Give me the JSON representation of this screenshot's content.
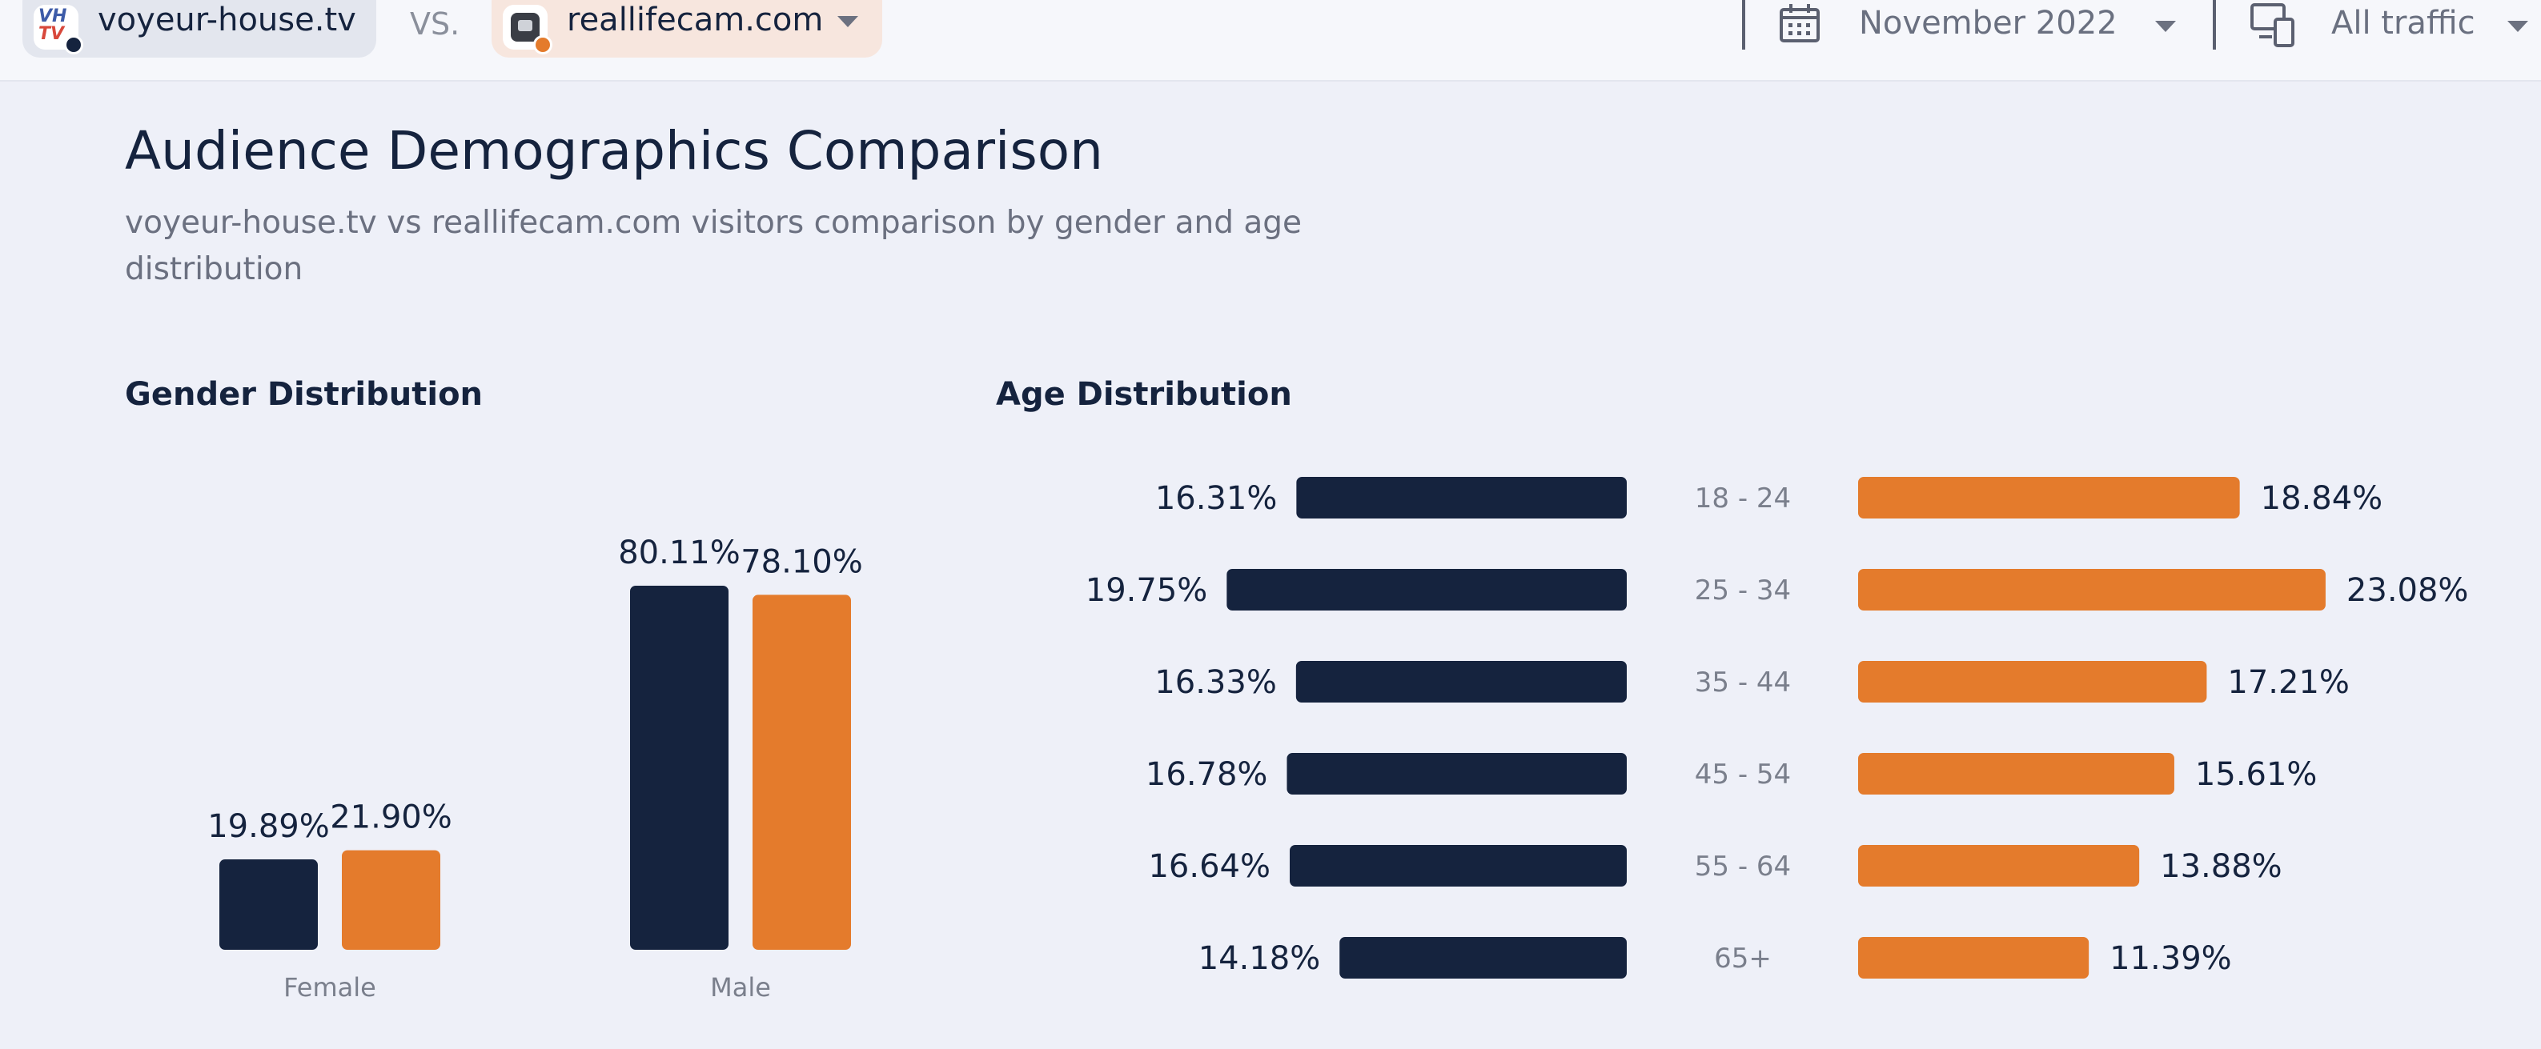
{
  "header": {
    "site1": {
      "name": "voyeur-house.tv",
      "favicon_top": "VH",
      "favicon_bottom": "TV"
    },
    "vs_label": "VS.",
    "site2": {
      "name": "reallifecam.com"
    },
    "date_filter": "November 2022",
    "traffic_filter": "All traffic",
    "colors": {
      "site1": "#15233e",
      "site2": "#e47b2c"
    }
  },
  "main": {
    "title": "Audience Demographics Comparison",
    "subtitle": "voyeur-house.tv vs reallifecam.com visitors comparison by gender and age distribution"
  },
  "chart_data": [
    {
      "type": "bar",
      "title": "Gender Distribution",
      "categories": [
        "Female",
        "Male"
      ],
      "series": [
        {
          "name": "voyeur-house.tv",
          "values": [
            19.89,
            80.11
          ],
          "labels": [
            "19.89%",
            "80.11%"
          ],
          "color": "#15233e"
        },
        {
          "name": "reallifecam.com",
          "values": [
            21.9,
            78.1
          ],
          "labels": [
            "21.90%",
            "78.10%"
          ],
          "color": "#e47b2c"
        }
      ],
      "ylim": [
        0,
        80.11
      ]
    },
    {
      "type": "bar",
      "orientation": "horizontal-mirrored",
      "title": "Age Distribution",
      "categories": [
        "18 - 24",
        "25 - 34",
        "35 - 44",
        "45 - 54",
        "55 - 64",
        "65+"
      ],
      "series": [
        {
          "name": "voyeur-house.tv",
          "values": [
            16.31,
            19.75,
            16.33,
            16.78,
            16.64,
            14.18
          ],
          "labels": [
            "16.31%",
            "19.75%",
            "16.33%",
            "16.78%",
            "16.64%",
            "14.18%"
          ],
          "color": "#15233e"
        },
        {
          "name": "reallifecam.com",
          "values": [
            18.84,
            23.08,
            17.21,
            15.61,
            13.88,
            11.39
          ],
          "labels": [
            "18.84%",
            "23.08%",
            "17.21%",
            "15.61%",
            "13.88%",
            "11.39%"
          ],
          "color": "#e47b2c"
        }
      ]
    }
  ]
}
